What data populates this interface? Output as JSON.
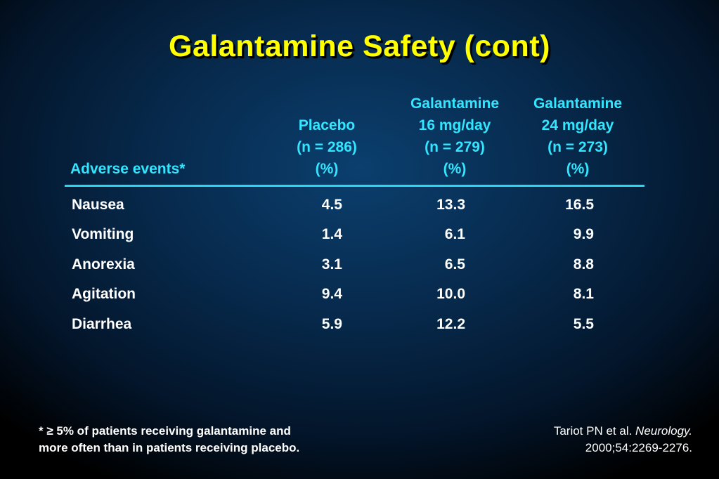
{
  "title": "Galantamine Safety (cont)",
  "colors": {
    "title": "#ffff00",
    "header": "#33e6ff",
    "rule": "#2ad6f0",
    "body_text": "#ffffff",
    "background": "#072a4d"
  },
  "table": {
    "headers": {
      "adverse_events": "Adverse events*",
      "placebo": [
        "Placebo",
        "(n = 286)",
        "(%)"
      ],
      "galantamine16": [
        "Galantamine",
        "16 mg/day",
        "(n = 279)",
        "(%)"
      ],
      "galantamine24": [
        "Galantamine",
        "24 mg/day",
        "(n = 273)",
        "(%)"
      ]
    },
    "rows": [
      {
        "event": "Nausea",
        "placebo": "4.5",
        "g16": "13.3",
        "g24": "16.5"
      },
      {
        "event": "Vomiting",
        "placebo": "1.4",
        "g16": "6.1",
        "g24": "9.9"
      },
      {
        "event": "Anorexia",
        "placebo": "3.1",
        "g16": "6.5",
        "g24": "8.8"
      },
      {
        "event": "Agitation",
        "placebo": "9.4",
        "g16": "10.0",
        "g24": "8.1"
      },
      {
        "event": "Diarrhea",
        "placebo": "5.9",
        "g16": "12.2",
        "g24": "5.5"
      }
    ]
  },
  "footnote": {
    "line1": "* ≥ 5% of patients receiving galantamine and",
    "line2": "more often than in patients receiving placebo."
  },
  "citation": {
    "authors": "Tariot PN et al. ",
    "journal": "Neurology.",
    "details": "2000;54:2269-2276."
  }
}
